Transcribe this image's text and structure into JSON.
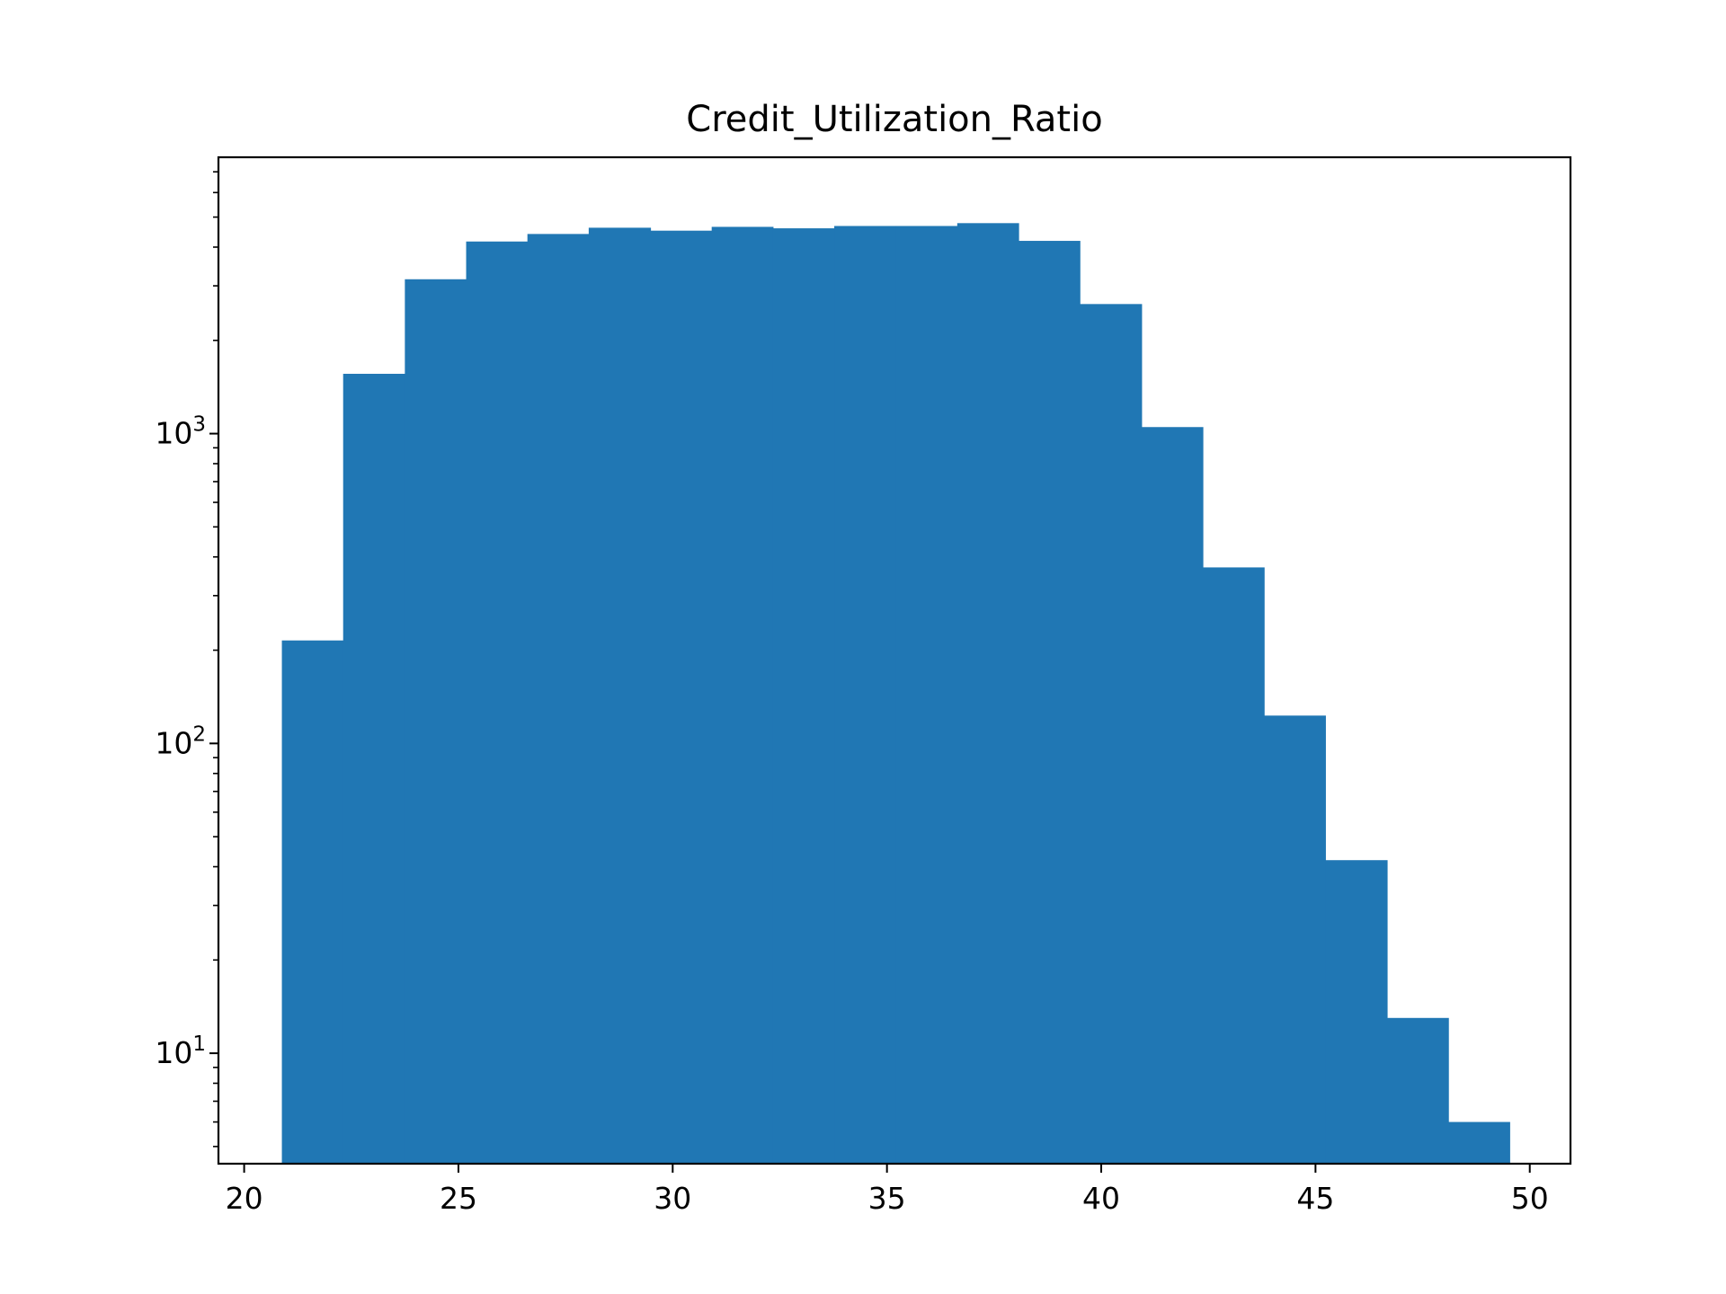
{
  "chart_data": {
    "type": "bar",
    "title": "Credit_Utilization_Ratio",
    "xlabel": "",
    "ylabel": "",
    "yscale": "log",
    "grid": false,
    "bar_color": "#2077b4",
    "xlim": [
      19.4,
      50.95
    ],
    "ylim": [
      4.4,
      7800
    ],
    "x_ticks": [
      {
        "value": 20,
        "label": "20"
      },
      {
        "value": 25,
        "label": "25"
      },
      {
        "value": 30,
        "label": "30"
      },
      {
        "value": 35,
        "label": "35"
      },
      {
        "value": 40,
        "label": "40"
      },
      {
        "value": 45,
        "label": "45"
      },
      {
        "value": 50,
        "label": "50"
      }
    ],
    "y_ticks": [
      {
        "value": 10,
        "base": "10",
        "exp": "1"
      },
      {
        "value": 100,
        "base": "10",
        "exp": "2"
      },
      {
        "value": 1000,
        "base": "10",
        "exp": "3"
      }
    ],
    "bins": [
      {
        "x0": 20.88,
        "x1": 22.31,
        "count": 215
      },
      {
        "x0": 22.31,
        "x1": 23.75,
        "count": 1560
      },
      {
        "x0": 23.75,
        "x1": 25.18,
        "count": 3150
      },
      {
        "x0": 25.18,
        "x1": 26.61,
        "count": 4170
      },
      {
        "x0": 26.61,
        "x1": 28.04,
        "count": 4410
      },
      {
        "x0": 28.04,
        "x1": 29.48,
        "count": 4620
      },
      {
        "x0": 29.48,
        "x1": 30.91,
        "count": 4520
      },
      {
        "x0": 30.91,
        "x1": 32.34,
        "count": 4650
      },
      {
        "x0": 32.34,
        "x1": 33.77,
        "count": 4600
      },
      {
        "x0": 33.77,
        "x1": 35.21,
        "count": 4680
      },
      {
        "x0": 35.21,
        "x1": 36.64,
        "count": 4680
      },
      {
        "x0": 36.64,
        "x1": 38.07,
        "count": 4780
      },
      {
        "x0": 38.07,
        "x1": 39.5,
        "count": 4190
      },
      {
        "x0": 39.5,
        "x1": 40.94,
        "count": 2620
      },
      {
        "x0": 40.94,
        "x1": 42.37,
        "count": 1050
      },
      {
        "x0": 42.37,
        "x1": 43.8,
        "count": 370
      },
      {
        "x0": 43.8,
        "x1": 45.23,
        "count": 123
      },
      {
        "x0": 45.23,
        "x1": 46.67,
        "count": 42
      },
      {
        "x0": 46.67,
        "x1": 48.1,
        "count": 13
      },
      {
        "x0": 48.1,
        "x1": 49.53,
        "count": 6
      }
    ]
  }
}
